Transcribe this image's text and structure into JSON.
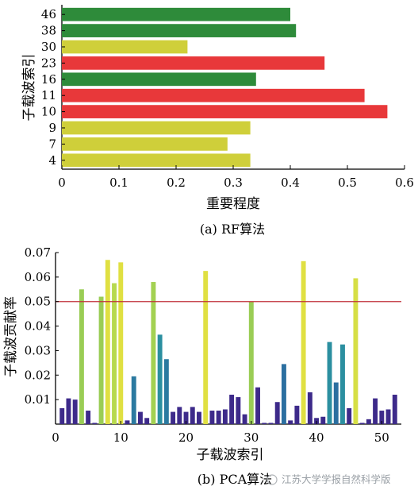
{
  "chart_data": [
    {
      "type": "bar",
      "orientation": "horizontal",
      "caption": "(a) RF算法",
      "xlabel": "重要程度",
      "ylabel": "子载波索引",
      "xlim": [
        0,
        0.6
      ],
      "xticks": [
        "0",
        "0.1",
        "0.2",
        "0.3",
        "0.4",
        "0.5",
        "0.6"
      ],
      "categories": [
        "46",
        "38",
        "30",
        "23",
        "16",
        "11",
        "10",
        "9",
        "7",
        "4"
      ],
      "values": [
        0.4,
        0.41,
        0.22,
        0.46,
        0.34,
        0.53,
        0.57,
        0.33,
        0.29,
        0.33
      ],
      "bar_colors": [
        "#2e8b3a",
        "#2e8b3a",
        "#cfcf3a",
        "#e8383a",
        "#2e8b3a",
        "#e8383a",
        "#e8383a",
        "#cfcf3a",
        "#cfcf3a",
        "#cfcf3a"
      ],
      "grid": false
    },
    {
      "type": "bar",
      "caption": "(b) PCA算法",
      "xlabel": "子载波索引",
      "ylabel": "子载波贡献率",
      "xlim": [
        0,
        53
      ],
      "ylim": [
        0,
        0.07
      ],
      "xticks": [
        "0",
        "10",
        "20",
        "30",
        "40",
        "50"
      ],
      "yticks": [
        "0.01",
        "0.02",
        "0.03",
        "0.04",
        "0.05",
        "0.06",
        "0.07"
      ],
      "x": [
        1,
        2,
        3,
        4,
        5,
        6,
        7,
        8,
        9,
        10,
        11,
        12,
        13,
        14,
        15,
        16,
        17,
        18,
        19,
        20,
        21,
        22,
        23,
        24,
        25,
        26,
        27,
        28,
        29,
        30,
        31,
        32,
        33,
        34,
        35,
        36,
        37,
        38,
        39,
        40,
        41,
        42,
        43,
        44,
        45,
        46,
        47,
        48,
        49,
        50,
        51,
        52
      ],
      "values": [
        0.0065,
        0.0105,
        0.01,
        0.055,
        0.0055,
        0.0005,
        0.052,
        0.067,
        0.0575,
        0.066,
        0.0015,
        0.0195,
        0.005,
        0.0025,
        0.058,
        0.0365,
        0.0265,
        0.005,
        0.007,
        0.005,
        0.007,
        0.005,
        0.0625,
        0.0055,
        0.0055,
        0.006,
        0.012,
        0.011,
        0.004,
        0.05,
        0.015,
        0.0005,
        0.0005,
        0.009,
        0.0245,
        0.0015,
        0.0075,
        0.0665,
        0.013,
        0.0025,
        0.003,
        0.0335,
        0.017,
        0.0325,
        0.0065,
        0.0595,
        0.0005,
        0.002,
        0.0105,
        0.0055,
        0.006,
        0.012
      ],
      "bar_colors": [
        "#3d2a8a",
        "#3d2a8a",
        "#3d2a8a",
        "#9acd55",
        "#3d2a8a",
        "#3d2a8a",
        "#9acd55",
        "#e0e042",
        "#b7d94e",
        "#e0e042",
        "#3d2a8a",
        "#2b7aa0",
        "#3d2a8a",
        "#3d2a8a",
        "#a3d152",
        "#2b8fa0",
        "#2b7aa0",
        "#3d2a8a",
        "#3d2a8a",
        "#3d2a8a",
        "#3d2a8a",
        "#3d2a8a",
        "#e0e042",
        "#3d2a8a",
        "#3d2a8a",
        "#3d2a8a",
        "#3d2a8a",
        "#3d2a8a",
        "#3d2a8a",
        "#9acd55",
        "#3d2a8a",
        "#3d2a8a",
        "#3d2a8a",
        "#3d2a8a",
        "#2b6fa0",
        "#3d2a8a",
        "#3d2a8a",
        "#e0e042",
        "#3d2a8a",
        "#3d2a8a",
        "#3d2a8a",
        "#2b8fa0",
        "#2b6fa0",
        "#2b8fa0",
        "#3d2a8a",
        "#d6df45",
        "#3d2a8a",
        "#3d2a8a",
        "#3d2a8a",
        "#3d2a8a",
        "#3d2a8a",
        "#3d2a8a"
      ],
      "reference_line": {
        "y": 0.05,
        "color": "#c0303a"
      },
      "grid": false
    }
  ],
  "watermark": "江苏大学学报自然科学版"
}
